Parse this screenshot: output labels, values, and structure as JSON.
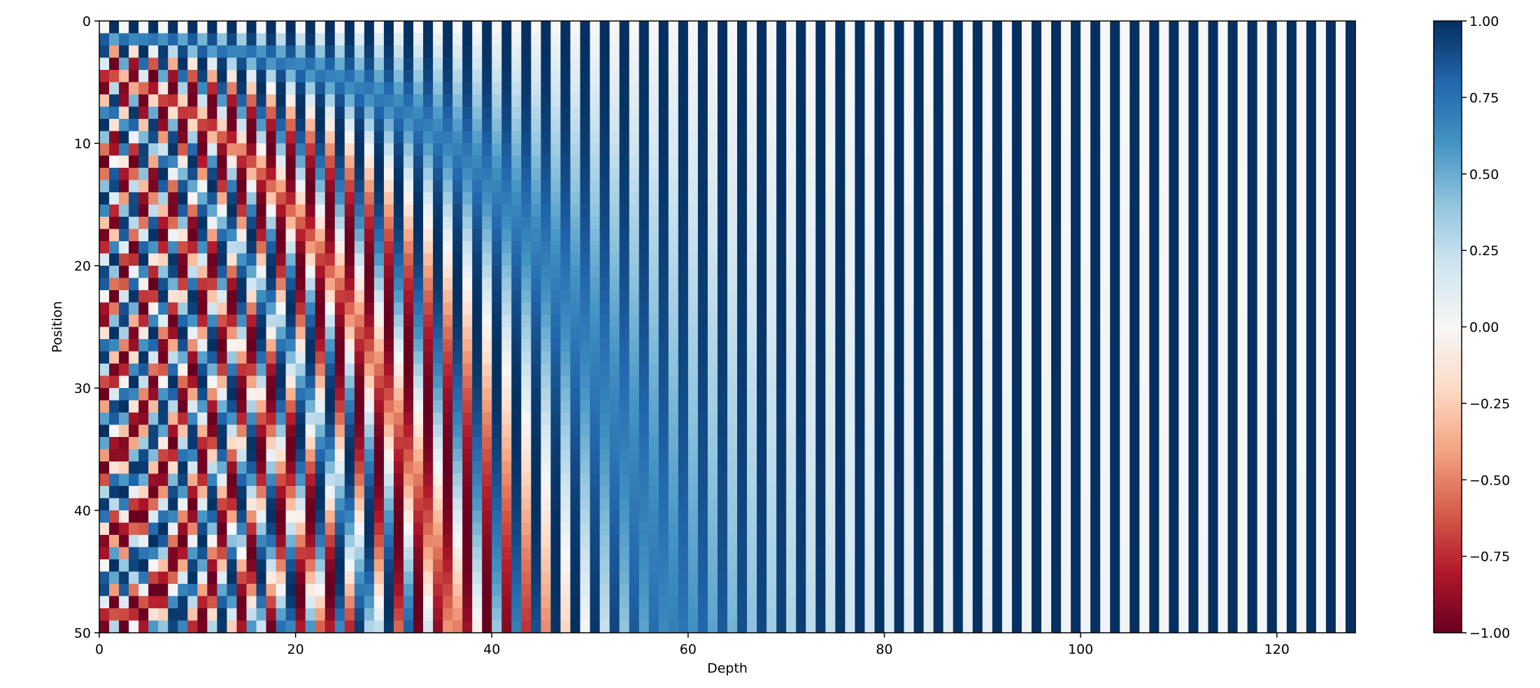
{
  "chart_data": {
    "type": "heatmap",
    "title": "",
    "xlabel": "Depth",
    "ylabel": "Position",
    "n_positions": 50,
    "n_depth": 128,
    "xlim": [
      0,
      128
    ],
    "ylim": [
      50,
      0
    ],
    "x_ticks": [
      0,
      20,
      40,
      60,
      80,
      100,
      120
    ],
    "y_ticks": [
      0,
      10,
      20,
      30,
      40,
      50
    ],
    "colormap": "RdBu",
    "value_range": [
      -1.0,
      1.0
    ],
    "colorbar_ticks": [
      "1.00",
      "0.75",
      "0.50",
      "0.25",
      "0.00",
      "−0.25",
      "−0.50",
      "−0.75",
      "−1.00"
    ],
    "colorbar_tick_values": [
      1.0,
      0.75,
      0.5,
      0.25,
      0.0,
      -0.25,
      -0.5,
      -0.75,
      -1.0
    ],
    "colormap_stops": [
      "#67001f",
      "#b2182b",
      "#d6604d",
      "#f4a582",
      "#fddbc7",
      "#f7f7f7",
      "#d1e5f0",
      "#92c5de",
      "#4393c3",
      "#2166ac",
      "#053061"
    ],
    "encoding": "value(pos, i) = sin(pos / 10000^(2*floor(i/2)/128)) for even i, cos(...) for odd i",
    "grid": false
  }
}
